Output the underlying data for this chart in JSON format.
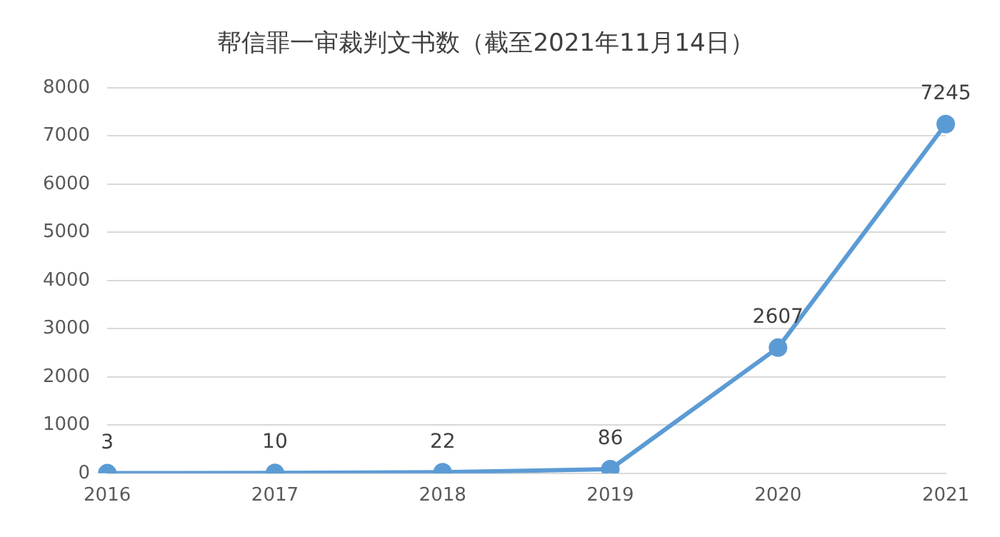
{
  "chart_data": {
    "type": "line",
    "title": "帮信罪一审裁判文书数（截至2021年11月14日）",
    "categories": [
      "2016",
      "2017",
      "2018",
      "2019",
      "2020",
      "2021"
    ],
    "series": [
      {
        "color": "#5b9bd5",
        "values": [
          3,
          10,
          22,
          86,
          2607,
          7245
        ]
      }
    ],
    "ylim": [
      0,
      8000
    ],
    "yticks": [
      0,
      1000,
      2000,
      3000,
      4000,
      5000,
      6000,
      7000,
      8000
    ],
    "grid": "y",
    "legend": false,
    "marker": "circle",
    "line_style": "solid",
    "data_labels": true
  }
}
